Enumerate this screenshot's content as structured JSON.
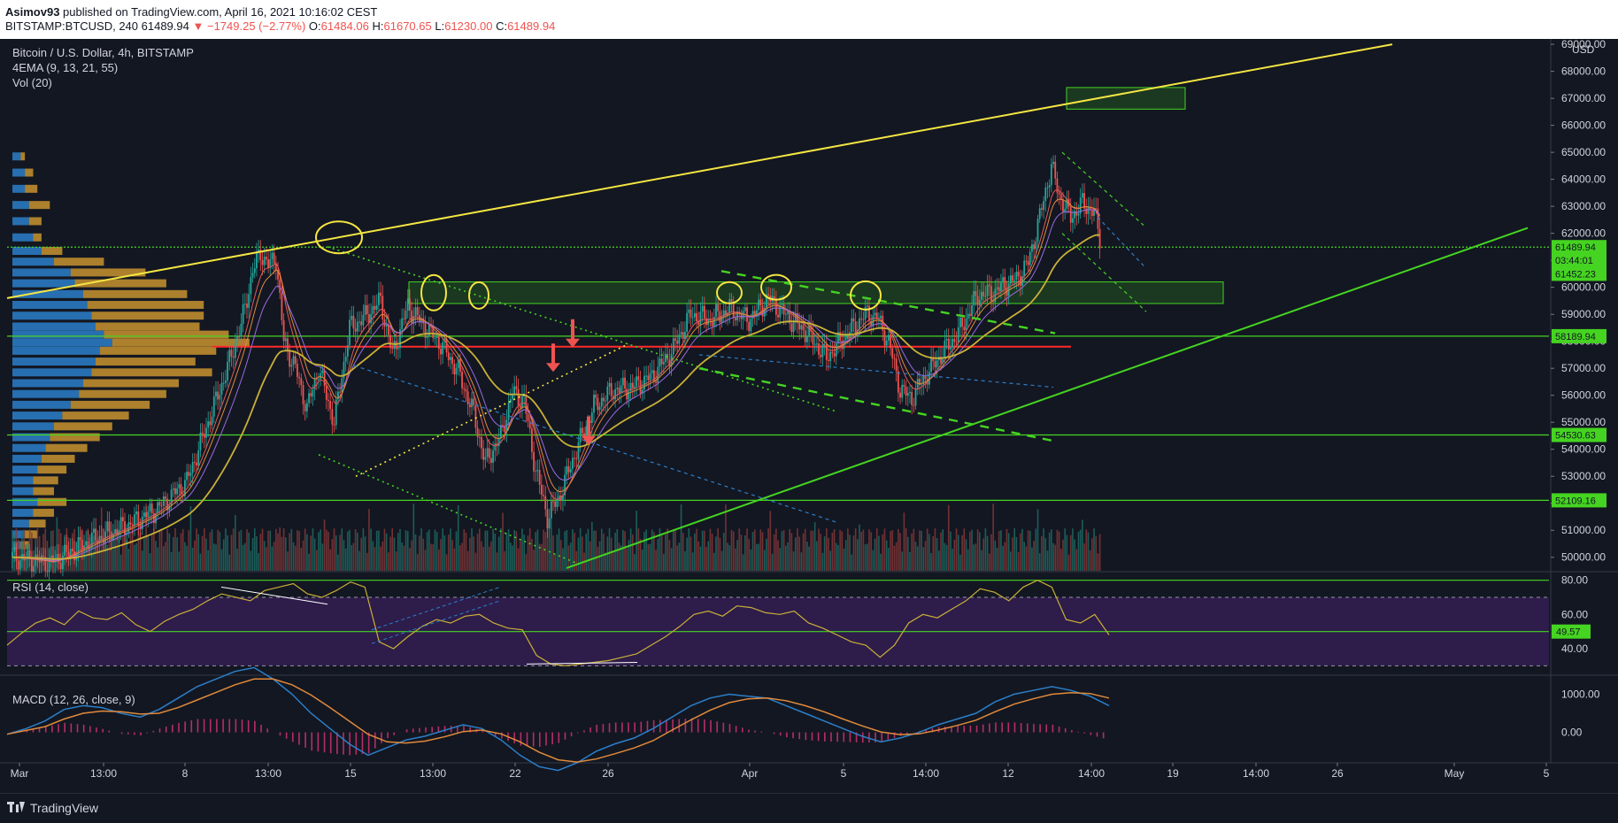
{
  "header": {
    "author": "Asimov93",
    "published": "published on TradingView.com, April 16, 2021 10:16:02 CEST",
    "symbol_line": "BITSTAMP:BTCUSD, 240",
    "last": "61489.94",
    "change": "▼ −1749.25 (−2.77%)",
    "o_label": "O:",
    "o_value": "61484.06",
    "h_label": "H:",
    "h_value": "61670.65",
    "l_label": "L:",
    "l_value": "61230.00",
    "c_label": "C:",
    "c_value": "61489.94"
  },
  "legend": {
    "title": "Bitcoin / U.S. Dollar, 4h, BITSTAMP",
    "ema": "4EMA (9, 13, 21, 55)",
    "vol": "Vol (20)",
    "rsi": "RSI (14, close)",
    "macd": "MACD (12, 26, close, 9)"
  },
  "footer": {
    "logo_text": "TradingView"
  },
  "colors": {
    "background": "#131722",
    "up": "#26a69a",
    "down": "#ef5350",
    "yellow_line": "#f5e642",
    "green_line": "#45d421",
    "red_line": "#ff2a2a",
    "ema_55": "#c9b037",
    "rsi_band": "#3b1f5c"
  },
  "chart_data": [
    {
      "type": "candlestick",
      "title": "Bitcoin / U.S. Dollar, 4h, BITSTAMP",
      "ylim": [
        49500,
        69200
      ],
      "y_unit": "USD",
      "y_ticks": [
        69000,
        68000,
        67000,
        66000,
        65000,
        64000,
        63000,
        62000,
        61000,
        60000,
        59000,
        58000,
        57000,
        56000,
        55000,
        54000,
        53000,
        52000,
        51000,
        50000
      ],
      "y_tick_labels": [
        "69000.00",
        "68000.00",
        "67000.00",
        "66000.00",
        "65000.00",
        "64000.00",
        "63000.00",
        "62000.00",
        "61000.00",
        "60000.00",
        "59000.00",
        "58000.00",
        "57000.00",
        "56000.00",
        "55000.00",
        "54000.00",
        "53000.00",
        "52000.00",
        "51000.00",
        "50000.00"
      ],
      "x_ticks": [
        "Mar",
        "13:00",
        "8",
        "13:00",
        "15",
        "13:00",
        "22",
        "26",
        "Apr",
        "5",
        "14:00",
        "12",
        "14:00",
        "19",
        "14:00",
        "26",
        "May",
        "5"
      ],
      "price_path": [
        [
          0,
          50000
        ],
        [
          20,
          49800
        ],
        [
          40,
          50600
        ],
        [
          60,
          51200
        ],
        [
          75,
          51800
        ],
        [
          90,
          52800
        ],
        [
          100,
          54800
        ],
        [
          110,
          56800
        ],
        [
          118,
          58600
        ],
        [
          124,
          60600
        ],
        [
          128,
          61300
        ],
        [
          132,
          60800
        ],
        [
          136,
          61100
        ],
        [
          140,
          58000
        ],
        [
          146,
          57000
        ],
        [
          152,
          55500
        ],
        [
          158,
          57000
        ],
        [
          166,
          55000
        ],
        [
          174,
          58500
        ],
        [
          182,
          58900
        ],
        [
          190,
          59500
        ],
        [
          196,
          57500
        ],
        [
          204,
          59300
        ],
        [
          212,
          58600
        ],
        [
          222,
          57800
        ],
        [
          230,
          56900
        ],
        [
          238,
          55300
        ],
        [
          244,
          53500
        ],
        [
          252,
          54500
        ],
        [
          258,
          56100
        ],
        [
          264,
          55800
        ],
        [
          270,
          53200
        ],
        [
          276,
          51500
        ],
        [
          282,
          52200
        ],
        [
          290,
          53800
        ],
        [
          300,
          55600
        ],
        [
          310,
          56200
        ],
        [
          320,
          56300
        ],
        [
          330,
          56700
        ],
        [
          340,
          57600
        ],
        [
          350,
          59000
        ],
        [
          360,
          58800
        ],
        [
          370,
          59200
        ],
        [
          380,
          58800
        ],
        [
          390,
          59600
        ],
        [
          400,
          58900
        ],
        [
          410,
          58300
        ],
        [
          420,
          57400
        ],
        [
          430,
          58200
        ],
        [
          440,
          59000
        ],
        [
          446,
          58900
        ],
        [
          452,
          58000
        ],
        [
          458,
          56200
        ],
        [
          464,
          55900
        ],
        [
          470,
          56600
        ],
        [
          478,
          57400
        ],
        [
          488,
          58300
        ],
        [
          498,
          59700
        ],
        [
          506,
          59800
        ],
        [
          512,
          60100
        ],
        [
          518,
          60300
        ],
        [
          524,
          60900
        ],
        [
          530,
          62600
        ],
        [
          536,
          64500
        ],
        [
          540,
          63400
        ],
        [
          546,
          62600
        ],
        [
          552,
          63100
        ],
        [
          558,
          62800
        ],
        [
          562,
          61490
        ]
      ],
      "price_path_x_unit": "candle index (4h)",
      "volume_profile": {
        "rows": [
          {
            "price": 64800,
            "blue": 2,
            "orange": 1
          },
          {
            "price": 64200,
            "blue": 3,
            "orange": 2
          },
          {
            "price": 63600,
            "blue": 3,
            "orange": 3
          },
          {
            "price": 63000,
            "blue": 4,
            "orange": 5
          },
          {
            "price": 62400,
            "blue": 4,
            "orange": 3
          },
          {
            "price": 61800,
            "blue": 5,
            "orange": 2
          },
          {
            "price": 61300,
            "blue": 7,
            "orange": 5
          },
          {
            "price": 60900,
            "blue": 10,
            "orange": 12
          },
          {
            "price": 60500,
            "blue": 14,
            "orange": 18
          },
          {
            "price": 60100,
            "blue": 15,
            "orange": 22
          },
          {
            "price": 59700,
            "blue": 17,
            "orange": 25
          },
          {
            "price": 59300,
            "blue": 18,
            "orange": 28
          },
          {
            "price": 58900,
            "blue": 19,
            "orange": 27
          },
          {
            "price": 58500,
            "blue": 20,
            "orange": 25
          },
          {
            "price": 58200,
            "blue": 22,
            "orange": 30
          },
          {
            "price": 57900,
            "blue": 24,
            "orange": 33
          },
          {
            "price": 57600,
            "blue": 21,
            "orange": 28
          },
          {
            "price": 57200,
            "blue": 20,
            "orange": 24
          },
          {
            "price": 56800,
            "blue": 19,
            "orange": 29
          },
          {
            "price": 56400,
            "blue": 17,
            "orange": 23
          },
          {
            "price": 56000,
            "blue": 16,
            "orange": 21
          },
          {
            "price": 55600,
            "blue": 14,
            "orange": 19
          },
          {
            "price": 55200,
            "blue": 12,
            "orange": 16
          },
          {
            "price": 54800,
            "blue": 10,
            "orange": 14
          },
          {
            "price": 54400,
            "blue": 9,
            "orange": 12
          },
          {
            "price": 54000,
            "blue": 8,
            "orange": 10
          },
          {
            "price": 53600,
            "blue": 7,
            "orange": 8
          },
          {
            "price": 53200,
            "blue": 6,
            "orange": 7
          },
          {
            "price": 52800,
            "blue": 5,
            "orange": 6
          },
          {
            "price": 52400,
            "blue": 5,
            "orange": 5
          },
          {
            "price": 52000,
            "blue": 6,
            "orange": 7
          },
          {
            "price": 51600,
            "blue": 5,
            "orange": 5
          },
          {
            "price": 51200,
            "blue": 4,
            "orange": 4
          },
          {
            "price": 50800,
            "blue": 3,
            "orange": 3
          },
          {
            "price": 50400,
            "blue": 2,
            "orange": 2
          }
        ]
      },
      "horizontal_levels": [
        {
          "price": 61489.94,
          "label": "61489.94",
          "color": "#45d421",
          "style": "dotted"
        },
        {
          "price": 58189.94,
          "label": "58189.94",
          "color": "#45d421",
          "style": "solid"
        },
        {
          "price": 54530.63,
          "label": "54530.63",
          "color": "#45d421",
          "style": "solid"
        },
        {
          "price": 52109.16,
          "label": "52109.16",
          "color": "#45d421",
          "style": "solid"
        },
        {
          "price": 57800,
          "label": "",
          "color": "#ff2a2a",
          "style": "solid"
        }
      ],
      "price_labels": [
        {
          "text": "61489.94",
          "price": 61489.94,
          "bg": "#45d421",
          "fg": "#131722"
        },
        {
          "text": "03:44:01",
          "price": 61000,
          "bg": "#45d421",
          "fg": "#131722"
        },
        {
          "text": "61452.23",
          "price": 60500,
          "bg": "#45d421",
          "fg": "#131722"
        },
        {
          "text": "58189.94",
          "price": 58189.94,
          "bg": "#45d421",
          "fg": "#131722"
        },
        {
          "text": "54530.63",
          "price": 54530.63,
          "bg": "#45d421",
          "fg": "#131722"
        },
        {
          "text": "52109.16",
          "price": 52109.16,
          "bg": "#45d421",
          "fg": "#131722"
        }
      ]
    },
    {
      "type": "line",
      "title": "RSI (14, close)",
      "ylim": [
        25,
        85
      ],
      "y_ticks": [
        80,
        60,
        40
      ],
      "y_tick_labels": [
        "80.00",
        "60.00",
        "40.00"
      ],
      "current_label": "49.57",
      "series": [
        {
          "values": [
            42,
            49,
            55,
            58,
            54,
            62,
            58,
            57,
            61,
            54,
            50,
            56,
            60,
            63,
            68,
            72,
            70,
            68,
            74,
            76,
            78,
            72,
            70,
            74,
            79,
            76,
            44,
            40,
            47,
            53,
            57,
            55,
            59,
            60,
            55,
            52,
            51,
            36,
            31,
            30,
            31,
            32,
            33,
            35,
            37,
            42,
            47,
            53,
            60,
            62,
            59,
            65,
            64,
            61,
            60,
            62,
            55,
            52,
            48,
            44,
            42,
            35,
            42,
            55,
            60,
            58,
            63,
            68,
            75,
            73,
            68,
            76,
            80,
            76,
            57,
            55,
            60,
            48
          ]
        }
      ]
    },
    {
      "type": "line",
      "title": "MACD (12, 26, close, 9)",
      "ylim": [
        -800,
        1500
      ],
      "y_ticks": [
        1000,
        0
      ],
      "y_tick_labels": [
        "1000.00",
        "0.00"
      ],
      "series": [
        {
          "values": [
            -50,
            100,
            300,
            600,
            700,
            650,
            500,
            400,
            600,
            900,
            1200,
            1400,
            1600,
            1700,
            1400,
            1000,
            500,
            100,
            -300,
            -600,
            -400,
            -200,
            -100,
            50,
            200,
            100,
            -200,
            -600,
            -900,
            -1000,
            -800,
            -500,
            -300,
            -150,
            100,
            400,
            700,
            900,
            1000,
            950,
            900,
            700,
            500,
            300,
            100,
            -100,
            -250,
            -150,
            0,
            200,
            350,
            500,
            800,
            1000,
            1100,
            1200,
            1100,
            950,
            700
          ]
        },
        {
          "values": [
            -50,
            50,
            150,
            350,
            500,
            560,
            540,
            480,
            500,
            650,
            850,
            1050,
            1250,
            1400,
            1400,
            1250,
            980,
            650,
            300,
            -50,
            -250,
            -280,
            -230,
            -120,
            20,
            60,
            -40,
            -250,
            -520,
            -720,
            -780,
            -700,
            -560,
            -410,
            -220,
            60,
            330,
            580,
            780,
            880,
            900,
            830,
            700,
            540,
            350,
            170,
            10,
            -60,
            -40,
            60,
            180,
            320,
            540,
            740,
            880,
            1000,
            1040,
            1020,
            900
          ]
        }
      ]
    }
  ]
}
